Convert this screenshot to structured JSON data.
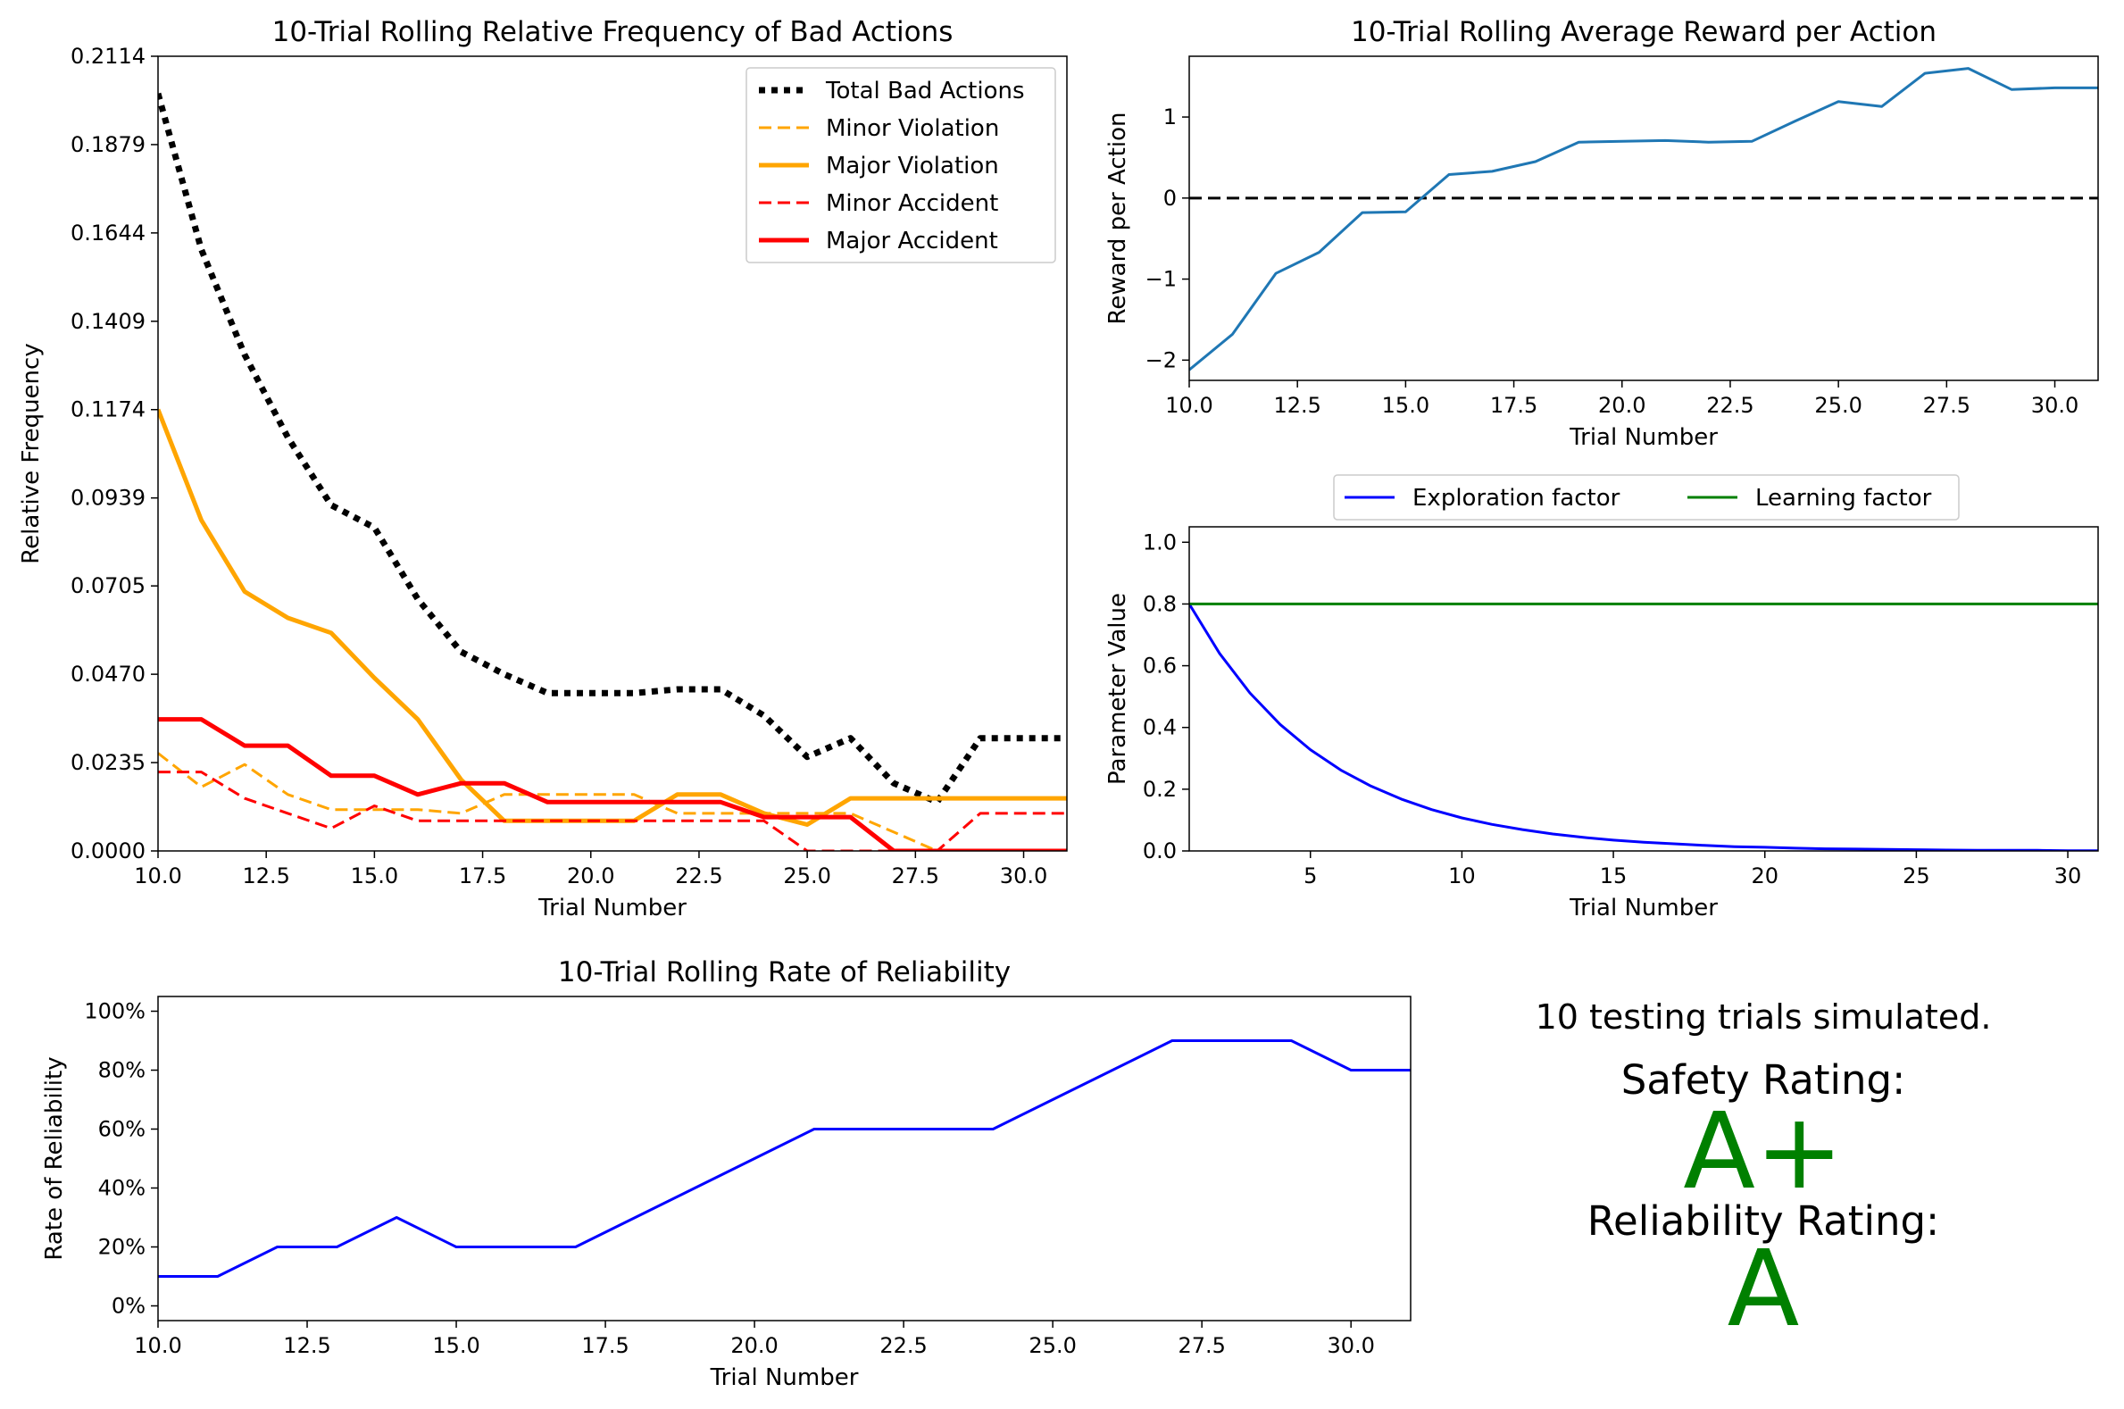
{
  "summary": {
    "trials_text": "10 testing trials simulated.",
    "safety_label": "Safety Rating:",
    "safety_grade": "A+",
    "reliability_label": "Reliability Rating:",
    "reliability_grade": "A",
    "grade_color": "#008000"
  },
  "chart_data": [
    {
      "id": "bad_actions",
      "type": "line",
      "title": "10-Trial Rolling Relative Frequency of Bad Actions",
      "xlabel": "Trial Number",
      "ylabel": "Relative Frequency",
      "xlim": [
        10,
        31
      ],
      "ylim": [
        0,
        0.2114
      ],
      "xticks": [
        10.0,
        12.5,
        15.0,
        17.5,
        20.0,
        22.5,
        25.0,
        27.5,
        30.0
      ],
      "xtick_labels": [
        "10.0",
        "12.5",
        "15.0",
        "17.5",
        "20.0",
        "22.5",
        "25.0",
        "27.5",
        "30.0"
      ],
      "yticks": [
        0,
        0.0235,
        0.047,
        0.0705,
        0.0939,
        0.1174,
        0.1409,
        0.1644,
        0.1879,
        0.2114
      ],
      "ytick_labels": [
        "0.0000",
        "0.0235",
        "0.0470",
        "0.0705",
        "0.0939",
        "0.1174",
        "0.1409",
        "0.1644",
        "0.1879",
        "0.2114"
      ],
      "legend": "top-right",
      "x": [
        10,
        11,
        12,
        13,
        14,
        15,
        16,
        17,
        18,
        19,
        20,
        21,
        22,
        23,
        24,
        25,
        26,
        27,
        28,
        29,
        30,
        31
      ],
      "series": [
        {
          "name": "Total Bad Actions",
          "color": "#000000",
          "style": "dotted",
          "width": 7,
          "values": [
            0.2015,
            0.16,
            0.132,
            0.11,
            0.092,
            0.086,
            0.067,
            0.053,
            0.047,
            0.042,
            0.042,
            0.042,
            0.043,
            0.043,
            0.036,
            0.025,
            0.03,
            0.018,
            0.013,
            0.03,
            0.03,
            0.03
          ]
        },
        {
          "name": "Minor Violation",
          "color": "#FFA500",
          "style": "dashed",
          "width": 3,
          "values": [
            0.026,
            0.017,
            0.023,
            0.015,
            0.011,
            0.011,
            0.011,
            0.01,
            0.015,
            0.015,
            0.015,
            0.015,
            0.01,
            0.01,
            0.01,
            0.01,
            0.01,
            0.005,
            0.0,
            0.0,
            0.0,
            0.0
          ]
        },
        {
          "name": "Major Violation",
          "color": "#FFA500",
          "style": "solid",
          "width": 5,
          "values": [
            0.1174,
            0.088,
            0.069,
            0.062,
            0.058,
            0.046,
            0.035,
            0.019,
            0.008,
            0.008,
            0.008,
            0.008,
            0.015,
            0.015,
            0.01,
            0.007,
            0.014,
            0.014,
            0.014,
            0.014,
            0.014,
            0.014
          ]
        },
        {
          "name": "Minor Accident",
          "color": "#FF0000",
          "style": "dashed",
          "width": 3,
          "values": [
            0.021,
            0.021,
            0.014,
            0.01,
            0.006,
            0.012,
            0.008,
            0.008,
            0.008,
            0.008,
            0.008,
            0.008,
            0.008,
            0.008,
            0.008,
            0.0,
            0.0,
            0.0,
            0.0,
            0.01,
            0.01,
            0.01
          ]
        },
        {
          "name": "Major Accident",
          "color": "#FF0000",
          "style": "solid",
          "width": 5,
          "values": [
            0.035,
            0.035,
            0.028,
            0.028,
            0.02,
            0.02,
            0.015,
            0.018,
            0.018,
            0.013,
            0.013,
            0.013,
            0.013,
            0.013,
            0.009,
            0.009,
            0.009,
            0.0,
            0.0,
            0.0,
            0.0,
            0.0
          ]
        }
      ]
    },
    {
      "id": "reward",
      "type": "line",
      "title": "10-Trial Rolling Average Reward per Action",
      "xlabel": "Trial Number",
      "ylabel": "Reward per Action",
      "xlim": [
        10,
        31
      ],
      "ylim": [
        -2.25,
        1.75
      ],
      "xticks": [
        10.0,
        12.5,
        15.0,
        17.5,
        20.0,
        22.5,
        25.0,
        27.5,
        30.0
      ],
      "xtick_labels": [
        "10.0",
        "12.5",
        "15.0",
        "17.5",
        "20.0",
        "22.5",
        "25.0",
        "27.5",
        "30.0"
      ],
      "yticks": [
        -2,
        -1,
        0,
        1
      ],
      "ytick_labels": [
        "−2",
        "−1",
        "0",
        "1"
      ],
      "reference_line": {
        "y": 0,
        "color": "#000000",
        "style": "dashed"
      },
      "x": [
        10,
        11,
        12,
        13,
        14,
        15,
        16,
        17,
        18,
        19,
        20,
        21,
        22,
        23,
        24,
        25,
        26,
        27,
        28,
        29,
        30,
        31
      ],
      "series": [
        {
          "color": "#1f77b4",
          "style": "solid",
          "width": 3,
          "values": [
            -2.12,
            -1.68,
            -0.93,
            -0.67,
            -0.18,
            -0.17,
            0.29,
            0.33,
            0.45,
            0.69,
            0.7,
            0.71,
            0.69,
            0.7,
            0.95,
            1.19,
            1.13,
            1.54,
            1.6,
            1.34,
            1.36,
            1.36
          ]
        }
      ]
    },
    {
      "id": "parameters",
      "type": "line",
      "xlabel": "Trial Number",
      "ylabel": "Parameter Value",
      "xlim": [
        1,
        31
      ],
      "ylim": [
        0,
        1.05
      ],
      "xticks": [
        5,
        10,
        15,
        20,
        25,
        30
      ],
      "xtick_labels": [
        "5",
        "10",
        "15",
        "20",
        "25",
        "30"
      ],
      "yticks": [
        0,
        0.2,
        0.4,
        0.6,
        0.8,
        1.0
      ],
      "ytick_labels": [
        "0.0",
        "0.2",
        "0.4",
        "0.6",
        "0.8",
        "1.0"
      ],
      "legend": "above, horizontal",
      "x": [
        1,
        2,
        3,
        4,
        5,
        6,
        7,
        8,
        9,
        10,
        11,
        12,
        13,
        14,
        15,
        16,
        17,
        18,
        19,
        20,
        21,
        22,
        23,
        24,
        25,
        26,
        27,
        28,
        29,
        30,
        31
      ],
      "series": [
        {
          "name": "Exploration factor",
          "color": "#0000FF",
          "style": "solid",
          "width": 3,
          "values": [
            0.8,
            0.64,
            0.512,
            0.41,
            0.328,
            0.262,
            0.21,
            0.168,
            0.134,
            0.107,
            0.086,
            0.069,
            0.055,
            0.044,
            0.035,
            0.028,
            0.023,
            0.018,
            0.014,
            0.012,
            0.009,
            0.007,
            0.006,
            0.005,
            0.004,
            0.003,
            0.002,
            0.002,
            0.002,
            0.001,
            0.001
          ]
        },
        {
          "name": "Learning factor",
          "color": "#008000",
          "style": "solid",
          "width": 3,
          "values": [
            0.8,
            0.8,
            0.8,
            0.8,
            0.8,
            0.8,
            0.8,
            0.8,
            0.8,
            0.8,
            0.8,
            0.8,
            0.8,
            0.8,
            0.8,
            0.8,
            0.8,
            0.8,
            0.8,
            0.8,
            0.8,
            0.8,
            0.8,
            0.8,
            0.8,
            0.8,
            0.8,
            0.8,
            0.8,
            0.8,
            0.8
          ]
        }
      ]
    },
    {
      "id": "reliability",
      "type": "line",
      "title": "10-Trial Rolling Rate of Reliability",
      "xlabel": "Trial Number",
      "ylabel": "Rate of Reliability",
      "xlim": [
        10,
        31
      ],
      "ylim": [
        -5,
        105
      ],
      "xticks": [
        10.0,
        12.5,
        15.0,
        17.5,
        20.0,
        22.5,
        25.0,
        27.5,
        30.0
      ],
      "xtick_labels": [
        "10.0",
        "12.5",
        "15.0",
        "17.5",
        "20.0",
        "22.5",
        "25.0",
        "27.5",
        "30.0"
      ],
      "yticks": [
        0,
        20,
        40,
        60,
        80,
        100
      ],
      "ytick_labels": [
        "0%",
        "20%",
        "40%",
        "60%",
        "80%",
        "100%"
      ],
      "x": [
        10,
        11,
        12,
        13,
        14,
        15,
        16,
        17,
        18,
        19,
        20,
        21,
        22,
        23,
        24,
        25,
        26,
        27,
        28,
        29,
        30,
        31
      ],
      "series": [
        {
          "color": "#0000FF",
          "style": "solid",
          "width": 3,
          "values": [
            10,
            10,
            20,
            20,
            30,
            20,
            20,
            20,
            30,
            40,
            50,
            60,
            60,
            60,
            60,
            70,
            80,
            90,
            90,
            90,
            80,
            80
          ]
        }
      ]
    }
  ]
}
